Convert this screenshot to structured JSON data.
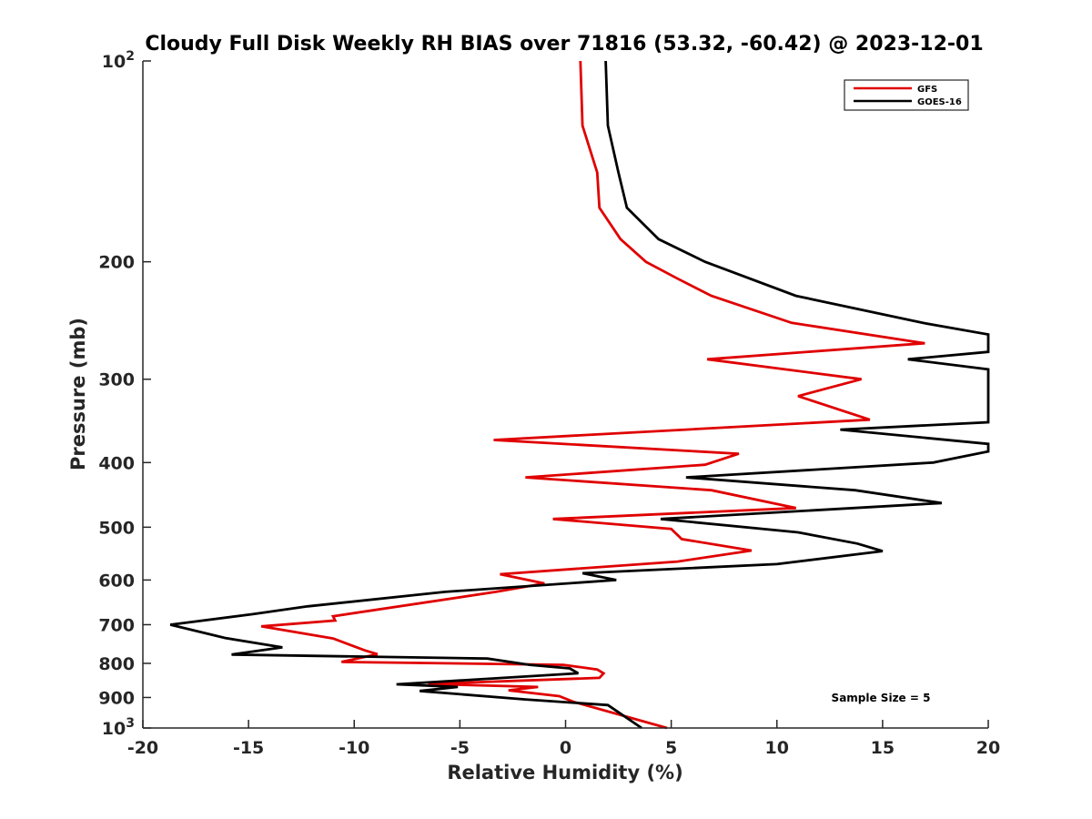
{
  "chart_data": {
    "type": "line",
    "title": "Cloudy Full Disk Weekly RH BIAS over 71816 (53.32, -60.42) @ 2023-12-01",
    "xlabel": "Relative Humidity (%)",
    "ylabel": "Pressure (mb)",
    "xlim": [
      -20,
      20
    ],
    "ylim": [
      100,
      1000
    ],
    "y_scale": "log",
    "y_reversed": true,
    "grid": false,
    "legend_position": "top-right",
    "x_ticks": [
      -20,
      -15,
      -10,
      -5,
      0,
      5,
      10,
      15,
      20
    ],
    "x_tick_labels": [
      "-20",
      "-15",
      "-10",
      "-5",
      "0",
      "5",
      "10",
      "15",
      "20"
    ],
    "y_ticks": [
      100,
      200,
      300,
      400,
      500,
      600,
      700,
      800,
      900,
      1000
    ],
    "y_tick_labels": [
      {
        "base": "10",
        "exp": "2"
      },
      {
        "base": "200",
        "exp": ""
      },
      {
        "base": "300",
        "exp": ""
      },
      {
        "base": "400",
        "exp": ""
      },
      {
        "base": "500",
        "exp": ""
      },
      {
        "base": "600",
        "exp": ""
      },
      {
        "base": "700",
        "exp": ""
      },
      {
        "base": "800",
        "exp": ""
      },
      {
        "base": "900",
        "exp": ""
      },
      {
        "base": "10",
        "exp": "3"
      }
    ],
    "annotation": "Sample Size = 5",
    "series": [
      {
        "name": "GFS",
        "color": "#e00000",
        "points": [
          [
            0.7,
            100
          ],
          [
            0.8,
            125
          ],
          [
            1.5,
            147
          ],
          [
            1.6,
            166
          ],
          [
            2.6,
            185
          ],
          [
            3.8,
            200
          ],
          [
            5.3,
            212
          ],
          [
            6.9,
            225
          ],
          [
            10.7,
            247
          ],
          [
            17.0,
            265
          ],
          [
            6.7,
            280
          ],
          [
            14.0,
            300
          ],
          [
            11.0,
            318
          ],
          [
            14.4,
            345
          ],
          [
            -3.4,
            370
          ],
          [
            8.2,
            388
          ],
          [
            6.6,
            403
          ],
          [
            -1.9,
            421
          ],
          [
            6.9,
            440
          ],
          [
            10.9,
            468
          ],
          [
            -0.6,
            486
          ],
          [
            5.0,
            503
          ],
          [
            5.5,
            521
          ],
          [
            8.8,
            542
          ],
          [
            5.3,
            563
          ],
          [
            -3.1,
            588
          ],
          [
            -1.0,
            607
          ],
          [
            -3.3,
            625
          ],
          [
            -11.0,
            680
          ],
          [
            -10.9,
            690
          ],
          [
            -14.4,
            704
          ],
          [
            -11.0,
            734
          ],
          [
            -9.5,
            765
          ],
          [
            -8.9,
            775
          ],
          [
            -10.6,
            796
          ],
          [
            -0.1,
            804
          ],
          [
            1.5,
            817
          ],
          [
            1.8,
            828
          ],
          [
            1.6,
            841
          ],
          [
            -6.5,
            859
          ],
          [
            -1.3,
            868
          ],
          [
            -2.7,
            878
          ],
          [
            -0.3,
            896
          ],
          [
            0.4,
            914
          ],
          [
            4.8,
            1000
          ]
        ]
      },
      {
        "name": "GOES-16",
        "color": "#000000",
        "points": [
          [
            1.9,
            100
          ],
          [
            2.0,
            125
          ],
          [
            2.5,
            147
          ],
          [
            2.9,
            166
          ],
          [
            4.4,
            185
          ],
          [
            6.6,
            200
          ],
          [
            10.9,
            225
          ],
          [
            16.9,
            247
          ],
          [
            20.0,
            257
          ],
          [
            20.0,
            273
          ],
          [
            16.2,
            280
          ],
          [
            20.0,
            290
          ],
          [
            20.0,
            348
          ],
          [
            13.0,
            357
          ],
          [
            20.0,
            375
          ],
          [
            20.0,
            385
          ],
          [
            17.4,
            400
          ],
          [
            5.7,
            421
          ],
          [
            13.7,
            440
          ],
          [
            17.8,
            460
          ],
          [
            4.5,
            486
          ],
          [
            11.0,
            509
          ],
          [
            13.8,
            529
          ],
          [
            15.0,
            543
          ],
          [
            10.0,
            568
          ],
          [
            0.8,
            586
          ],
          [
            2.4,
            600
          ],
          [
            -5.7,
            625
          ],
          [
            -12.2,
            657
          ],
          [
            -14.8,
            675
          ],
          [
            -18.7,
            700
          ],
          [
            -16.1,
            733
          ],
          [
            -13.4,
            757
          ],
          [
            -15.8,
            776
          ],
          [
            -3.7,
            787
          ],
          [
            -1.7,
            804
          ],
          [
            0.2,
            814
          ],
          [
            0.6,
            828
          ],
          [
            -8.0,
            860
          ],
          [
            -5.1,
            868
          ],
          [
            -6.9,
            880
          ],
          [
            -1.9,
            906
          ],
          [
            2.0,
            924
          ],
          [
            3.6,
            1000
          ]
        ]
      }
    ]
  }
}
